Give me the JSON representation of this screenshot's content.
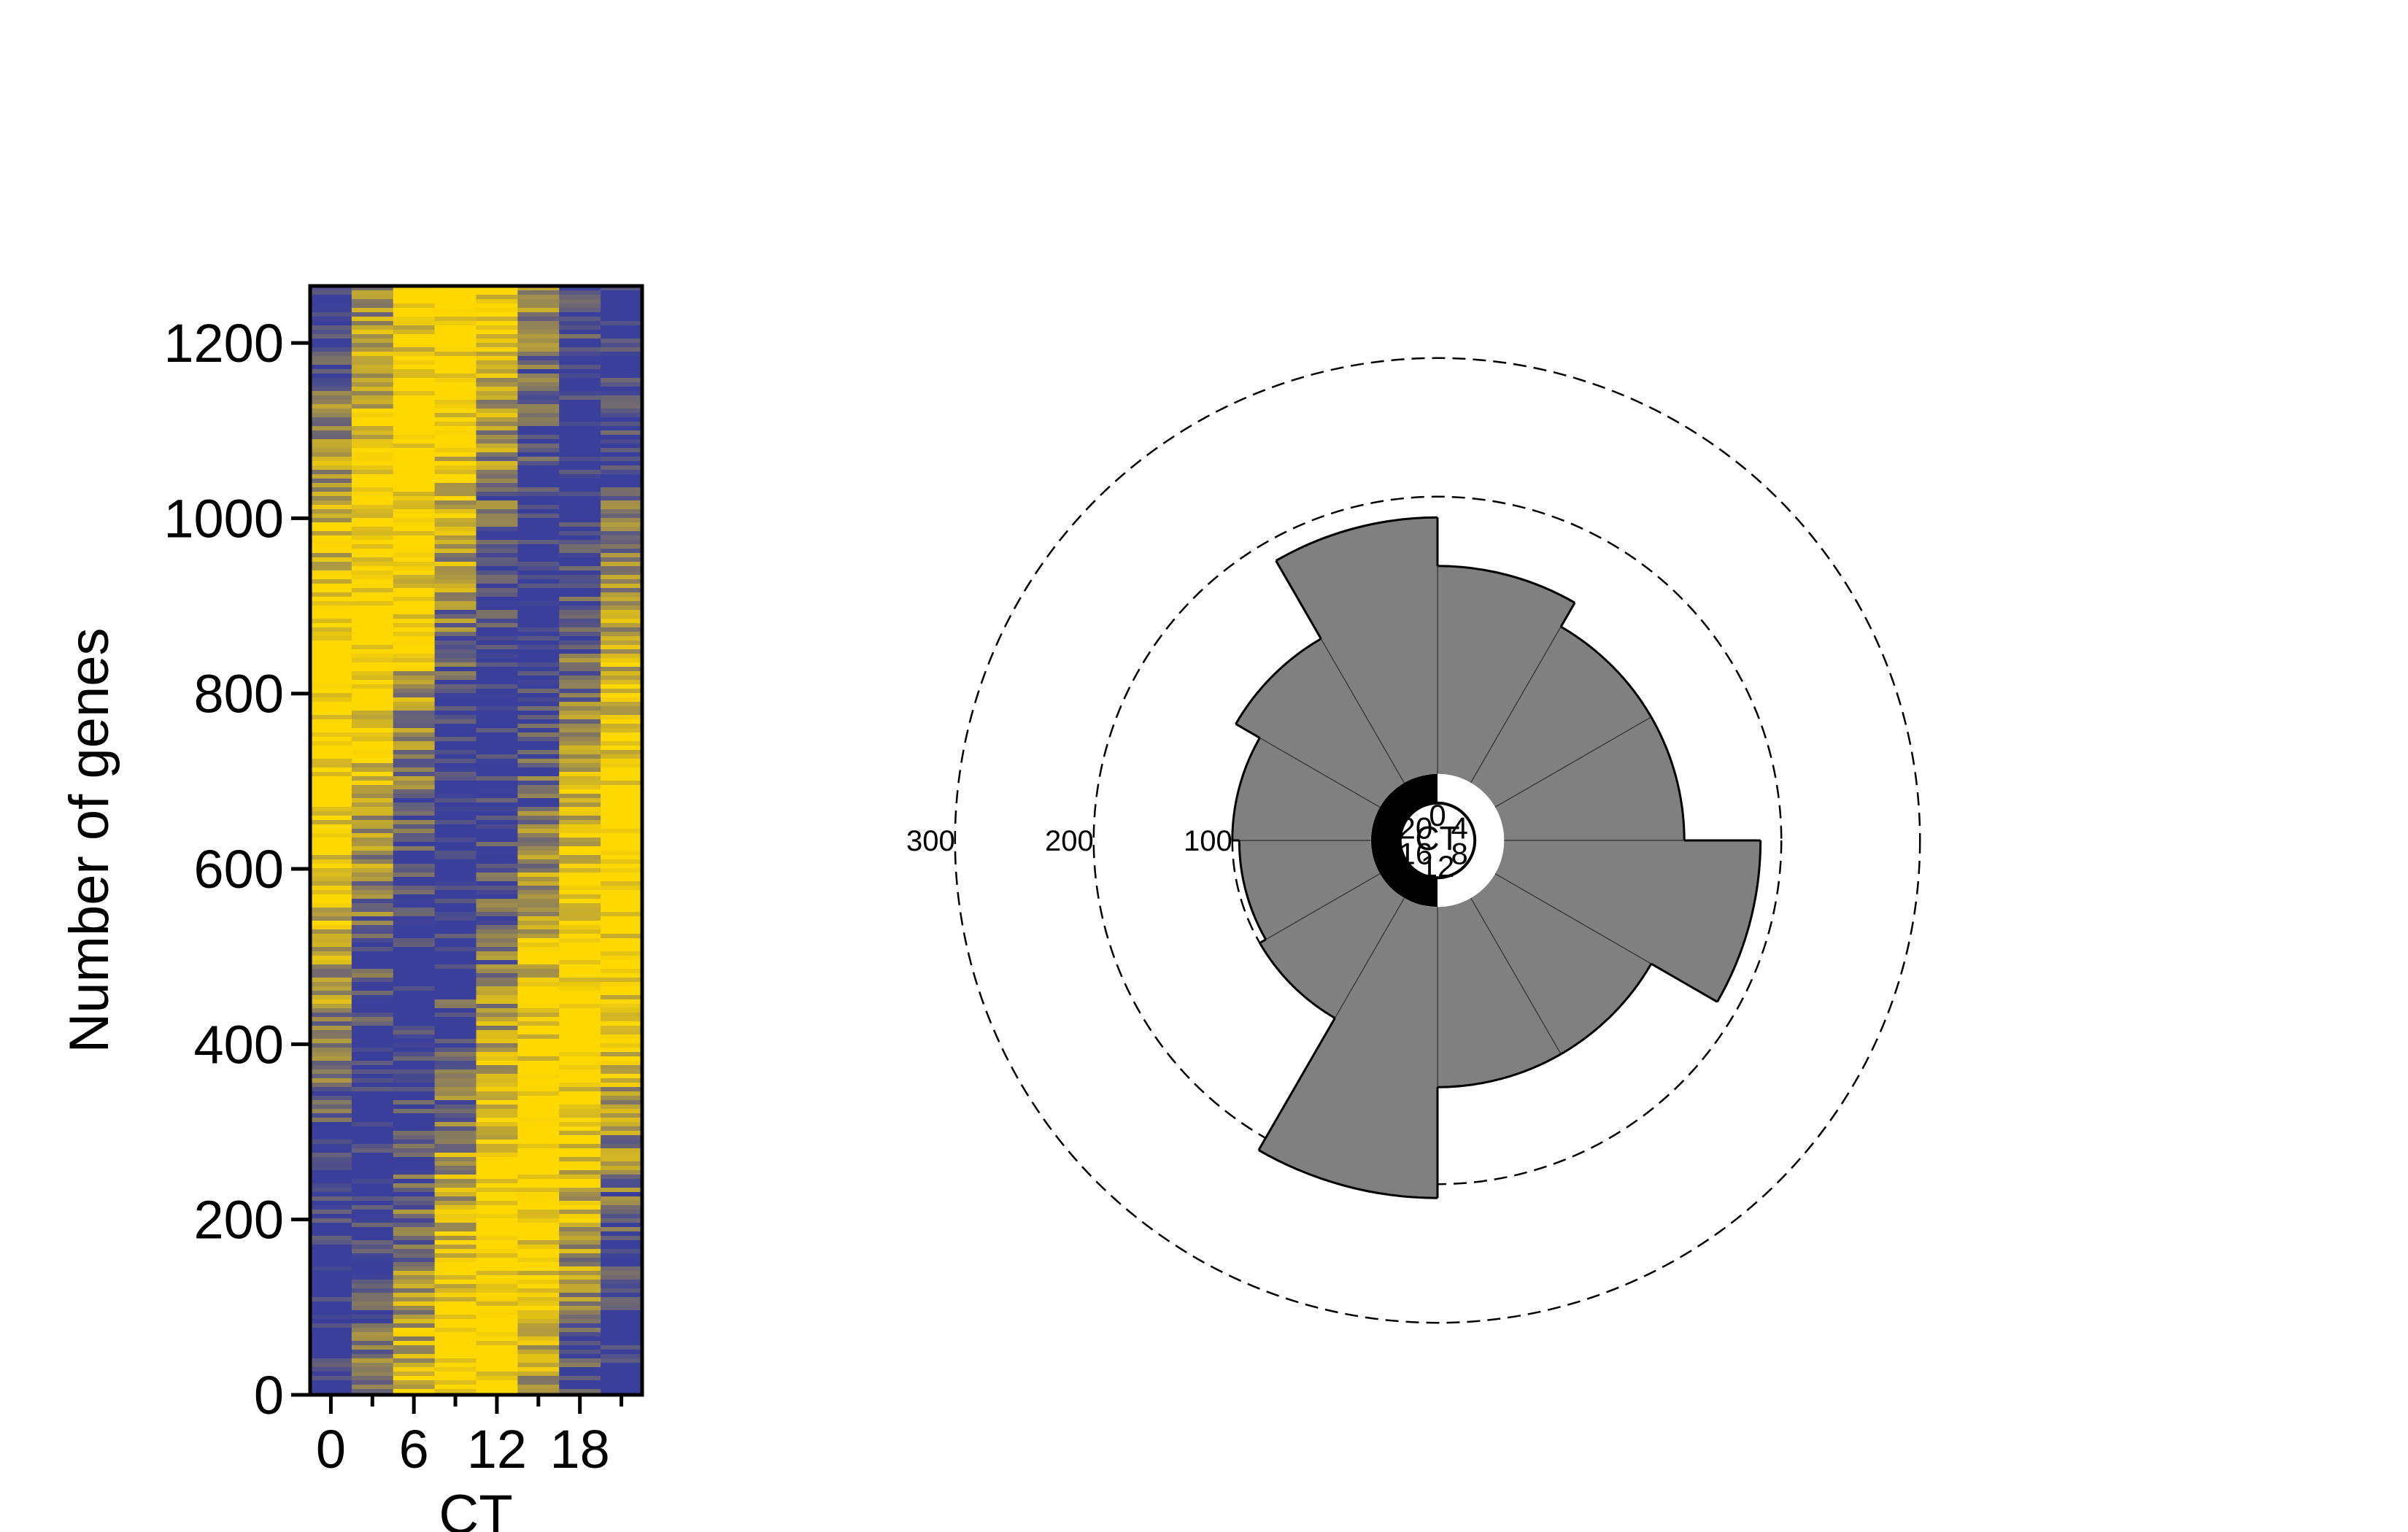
{
  "chart_data": [
    {
      "type": "heatmap",
      "title": "",
      "xlabel": "CT",
      "ylabel": "Number of genes",
      "x_ticks": [
        0,
        6,
        12,
        18
      ],
      "x_minor_ticks": [
        3,
        9,
        15,
        21
      ],
      "y_ticks": [
        0,
        200,
        400,
        600,
        800,
        1000,
        1200
      ],
      "ylim": [
        0,
        1265
      ],
      "columns_ct": [
        0,
        3,
        6,
        9,
        12,
        15,
        18,
        21
      ],
      "colors": {
        "low": "#3a3f9c",
        "high": "#ffd800"
      },
      "peak_trend": {
        "gene_bottom": 0,
        "gene_top": 1265,
        "peak_ct_at_bottom": 9.5,
        "peak_ct_at_top": 33.5
      },
      "grid": false,
      "legend": "none"
    },
    {
      "type": "polar_bar",
      "title": "",
      "center_label": "CT",
      "hour_labels": [
        {
          "text": "0",
          "ct": 0
        },
        {
          "text": "4",
          "ct": 4
        },
        {
          "text": "8",
          "ct": 8
        },
        {
          "text": "12",
          "ct": 12
        },
        {
          "text": "16",
          "ct": 16
        },
        {
          "text": "20",
          "ct": 20
        }
      ],
      "bin_width_ct": 2,
      "bins_start_ct": [
        0,
        2,
        4,
        6,
        8,
        10,
        12,
        14,
        16,
        18,
        20,
        22
      ],
      "values": [
        150,
        130,
        130,
        185,
        130,
        130,
        210,
        100,
        95,
        100,
        120,
        185
      ],
      "rings": [
        100,
        200,
        300
      ],
      "ring_labels": [
        "100",
        "200",
        "300"
      ],
      "radial_offset": 48,
      "light_dark": {
        "light": "CT 0-12",
        "dark": "CT 12-24"
      },
      "bar_color": "#808080",
      "legend": "none"
    }
  ]
}
